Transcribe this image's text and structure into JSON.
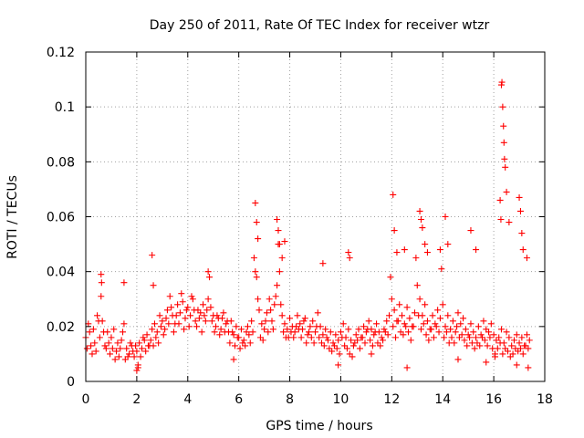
{
  "chart_data": {
    "type": "scatter",
    "title": "Day 250 of 2011, Rate Of TEC Index for receiver wtzr",
    "xlabel": "GPS time / hours",
    "ylabel": "ROTI / TECUs",
    "xlim": [
      0,
      18
    ],
    "ylim": [
      0,
      0.12
    ],
    "xticks": [
      0,
      2,
      4,
      6,
      8,
      10,
      12,
      14,
      16,
      18
    ],
    "xtick_labels": [
      "0",
      "2",
      "4",
      "6",
      "8",
      "10",
      "12",
      "14",
      "16",
      "18"
    ],
    "yticks": [
      0,
      0.02,
      0.04,
      0.06,
      0.08,
      0.1,
      0.12
    ],
    "ytick_labels": [
      "0",
      "0.02",
      "0.04",
      "0.06",
      "0.08",
      "0.1",
      "0.12"
    ],
    "grid": true,
    "marker": "+",
    "series_color": "#ff0000",
    "series": [
      {
        "name": "ROTI",
        "x": [
          0.0,
          0.1,
          0.2,
          0.3,
          0.4,
          0.5,
          0.6,
          0.7,
          0.8,
          0.9,
          1.0,
          1.1,
          1.2,
          1.3,
          1.4,
          1.5,
          1.6,
          1.7,
          1.8,
          1.9,
          2.0,
          2.1,
          2.2,
          2.3,
          2.4,
          2.5,
          2.6,
          2.7,
          2.8,
          2.9,
          3.0,
          3.1,
          3.2,
          3.3,
          3.4,
          3.5,
          3.6,
          3.7,
          3.8,
          3.9,
          4.0,
          4.1,
          4.2,
          4.3,
          4.4,
          4.5,
          4.6,
          4.7,
          4.8,
          4.9,
          5.0,
          5.1,
          5.2,
          5.3,
          5.4,
          5.5,
          5.6,
          5.7,
          5.8,
          5.9,
          6.0,
          6.1,
          6.2,
          6.3,
          6.4,
          6.5,
          6.6,
          6.7,
          6.8,
          6.9,
          7.0,
          7.1,
          7.2,
          7.3,
          7.4,
          7.5,
          7.6,
          7.7,
          7.8,
          7.9,
          8.0,
          8.1,
          8.2,
          8.3,
          8.4,
          8.5,
          8.6,
          8.7,
          8.8,
          8.9,
          9.0,
          9.1,
          9.2,
          9.3,
          9.4,
          9.5,
          9.6,
          9.7,
          9.8,
          9.9,
          10.0,
          10.1,
          10.2,
          10.3,
          10.4,
          10.5,
          10.6,
          10.7,
          10.8,
          10.9,
          11.0,
          11.1,
          11.2,
          11.3,
          11.4,
          11.5,
          11.6,
          11.7,
          11.8,
          11.9,
          12.0,
          12.1,
          12.2,
          12.3,
          12.4,
          12.5,
          12.6,
          12.7,
          12.8,
          12.9,
          13.0,
          13.1,
          13.2,
          13.3,
          13.4,
          13.5,
          13.6,
          13.7,
          13.8,
          13.9,
          14.0,
          14.1,
          14.2,
          14.3,
          14.4,
          14.5,
          14.6,
          14.7,
          14.8,
          14.9,
          15.0,
          15.1,
          15.2,
          15.3,
          15.4,
          15.5,
          15.6,
          15.7,
          15.8,
          15.9,
          16.0,
          16.1,
          16.2,
          16.3,
          16.4,
          16.5,
          16.6,
          16.7,
          16.8,
          16.9,
          17.0,
          17.1,
          17.2,
          17.3,
          17.4,
          0.05,
          0.15,
          0.25,
          0.35,
          0.45,
          0.55,
          0.65,
          0.75,
          0.85,
          0.95,
          1.05,
          1.15,
          1.25,
          1.35,
          1.45,
          1.55,
          1.65,
          1.75,
          1.85,
          1.95,
          2.05,
          2.15,
          2.25,
          2.35,
          2.45,
          2.55,
          2.65,
          2.75,
          2.85,
          2.95,
          3.05,
          3.15,
          3.25,
          3.35,
          3.45,
          3.55,
          3.65,
          3.75,
          3.85,
          3.95,
          4.05,
          4.15,
          4.25,
          4.35,
          4.45,
          4.55,
          4.65,
          4.75,
          4.85,
          4.95,
          5.05,
          5.15,
          5.25,
          5.35,
          5.45,
          5.55,
          5.65,
          5.75,
          5.85,
          5.95,
          6.05,
          6.15,
          6.25,
          6.35,
          6.45,
          6.55,
          6.65,
          6.75,
          6.85,
          6.95,
          7.05,
          7.15,
          7.25,
          7.35,
          7.45,
          7.55,
          7.65,
          7.75,
          7.85,
          7.95,
          8.05,
          8.15,
          8.25,
          8.35,
          8.45,
          8.55,
          8.65,
          8.75,
          8.85,
          8.95,
          9.05,
          9.15,
          9.25,
          9.35,
          9.45,
          9.55,
          9.65,
          9.75,
          9.85,
          9.95,
          10.05,
          10.15,
          10.25,
          10.35,
          10.45,
          10.55,
          10.65,
          10.75,
          10.85,
          10.95,
          11.05,
          11.15,
          11.25,
          11.35,
          11.45,
          11.55,
          11.65,
          11.75,
          11.85,
          11.95,
          12.05,
          12.15,
          12.25,
          12.35,
          12.45,
          12.55,
          12.65,
          12.75,
          12.85,
          12.95,
          13.05,
          13.15,
          13.25,
          13.35,
          13.45,
          13.55,
          13.65,
          13.75,
          13.85,
          13.95,
          14.05,
          14.15,
          14.25,
          14.35,
          14.45,
          14.55,
          14.65,
          14.75,
          14.85,
          14.95,
          15.05,
          15.15,
          15.25,
          15.35,
          15.45,
          15.55,
          15.65,
          15.75,
          15.85,
          15.95,
          16.05,
          16.15,
          16.25,
          16.35,
          16.45,
          16.55,
          16.65,
          16.75,
          16.85,
          16.95,
          17.05,
          17.15,
          17.25,
          17.35,
          0.6,
          0.62,
          1.5,
          2.6,
          2.65,
          4.8,
          6.65,
          6.7,
          6.75,
          7.5,
          7.55,
          7.6,
          7.7,
          7.8,
          9.3,
          10.3,
          10.35,
          12.05,
          12.1,
          12.2,
          12.5,
          13.1,
          13.15,
          13.2,
          13.3,
          13.4,
          13.9,
          14.1,
          14.2,
          15.1,
          15.3,
          16.3,
          16.32,
          16.35,
          16.38,
          16.4,
          16.42,
          16.45,
          16.5,
          16.6,
          16.25,
          16.28,
          17.0,
          17.05,
          17.1,
          17.15,
          17.3,
          2.0,
          2.05,
          5.8,
          9.9,
          11.2,
          12.6,
          14.6,
          15.7,
          16.05,
          16.9,
          17.35
        ],
        "y": [
          0.016,
          0.021,
          0.013,
          0.019,
          0.011,
          0.022,
          0.031,
          0.018,
          0.012,
          0.014,
          0.016,
          0.019,
          0.011,
          0.009,
          0.015,
          0.021,
          0.012,
          0.01,
          0.013,
          0.009,
          0.011,
          0.014,
          0.012,
          0.015,
          0.017,
          0.013,
          0.019,
          0.021,
          0.018,
          0.024,
          0.022,
          0.019,
          0.026,
          0.031,
          0.024,
          0.021,
          0.028,
          0.025,
          0.029,
          0.023,
          0.027,
          0.024,
          0.03,
          0.022,
          0.026,
          0.025,
          0.028,
          0.022,
          0.03,
          0.027,
          0.024,
          0.02,
          0.023,
          0.019,
          0.025,
          0.021,
          0.018,
          0.022,
          0.017,
          0.02,
          0.016,
          0.019,
          0.015,
          0.018,
          0.017,
          0.022,
          0.045,
          0.038,
          0.026,
          0.021,
          0.019,
          0.025,
          0.03,
          0.022,
          0.028,
          0.035,
          0.04,
          0.024,
          0.021,
          0.019,
          0.023,
          0.02,
          0.018,
          0.024,
          0.021,
          0.019,
          0.023,
          0.017,
          0.02,
          0.022,
          0.018,
          0.025,
          0.02,
          0.017,
          0.019,
          0.015,
          0.018,
          0.014,
          0.017,
          0.015,
          0.018,
          0.021,
          0.016,
          0.019,
          0.015,
          0.013,
          0.017,
          0.019,
          0.016,
          0.02,
          0.018,
          0.022,
          0.019,
          0.017,
          0.021,
          0.018,
          0.016,
          0.019,
          0.022,
          0.024,
          0.03,
          0.026,
          0.022,
          0.028,
          0.024,
          0.021,
          0.027,
          0.023,
          0.02,
          0.025,
          0.035,
          0.03,
          0.024,
          0.028,
          0.022,
          0.019,
          0.024,
          0.021,
          0.026,
          0.023,
          0.028,
          0.02,
          0.024,
          0.019,
          0.022,
          0.018,
          0.025,
          0.021,
          0.023,
          0.019,
          0.017,
          0.021,
          0.018,
          0.016,
          0.02,
          0.017,
          0.022,
          0.019,
          0.018,
          0.021,
          0.017,
          0.015,
          0.016,
          0.019,
          0.014,
          0.018,
          0.016,
          0.013,
          0.015,
          0.017,
          0.014,
          0.016,
          0.013,
          0.017,
          0.015,
          0.012,
          0.018,
          0.01,
          0.014,
          0.024,
          0.016,
          0.022,
          0.013,
          0.018,
          0.01,
          0.012,
          0.008,
          0.014,
          0.012,
          0.018,
          0.008,
          0.009,
          0.014,
          0.011,
          0.013,
          0.006,
          0.009,
          0.016,
          0.011,
          0.013,
          0.015,
          0.013,
          0.016,
          0.014,
          0.02,
          0.017,
          0.023,
          0.021,
          0.027,
          0.018,
          0.024,
          0.021,
          0.032,
          0.019,
          0.026,
          0.02,
          0.031,
          0.026,
          0.02,
          0.023,
          0.018,
          0.024,
          0.026,
          0.038,
          0.022,
          0.018,
          0.024,
          0.017,
          0.023,
          0.018,
          0.022,
          0.014,
          0.018,
          0.013,
          0.016,
          0.012,
          0.014,
          0.013,
          0.02,
          0.014,
          0.018,
          0.04,
          0.03,
          0.016,
          0.015,
          0.022,
          0.018,
          0.026,
          0.019,
          0.031,
          0.05,
          0.028,
          0.018,
          0.016,
          0.016,
          0.018,
          0.016,
          0.02,
          0.019,
          0.016,
          0.022,
          0.014,
          0.018,
          0.016,
          0.014,
          0.02,
          0.016,
          0.014,
          0.013,
          0.016,
          0.012,
          0.011,
          0.013,
          0.012,
          0.01,
          0.016,
          0.013,
          0.012,
          0.01,
          0.009,
          0.014,
          0.015,
          0.012,
          0.016,
          0.014,
          0.019,
          0.015,
          0.013,
          0.018,
          0.014,
          0.013,
          0.015,
          0.018,
          0.017,
          0.038,
          0.02,
          0.016,
          0.022,
          0.018,
          0.017,
          0.02,
          0.018,
          0.015,
          0.02,
          0.045,
          0.024,
          0.019,
          0.021,
          0.017,
          0.015,
          0.019,
          0.016,
          0.02,
          0.018,
          0.041,
          0.016,
          0.018,
          0.014,
          0.016,
          0.014,
          0.02,
          0.016,
          0.017,
          0.015,
          0.013,
          0.016,
          0.014,
          0.012,
          0.014,
          0.013,
          0.016,
          0.015,
          0.013,
          0.016,
          0.012,
          0.01,
          0.012,
          0.014,
          0.01,
          0.012,
          0.011,
          0.009,
          0.01,
          0.012,
          0.011,
          0.012,
          0.01,
          0.013,
          0.012,
          0.039,
          0.036,
          0.036,
          0.046,
          0.035,
          0.04,
          0.065,
          0.058,
          0.052,
          0.059,
          0.055,
          0.05,
          0.045,
          0.051,
          0.043,
          0.047,
          0.045,
          0.068,
          0.055,
          0.047,
          0.048,
          0.062,
          0.059,
          0.056,
          0.05,
          0.047,
          0.048,
          0.06,
          0.05,
          0.055,
          0.048,
          0.108,
          0.109,
          0.1,
          0.093,
          0.087,
          0.081,
          0.078,
          0.069,
          0.058,
          0.066,
          0.059,
          0.067,
          0.062,
          0.054,
          0.048,
          0.045,
          0.004,
          0.005,
          0.008,
          0.006,
          0.01,
          0.005,
          0.008,
          0.007,
          0.009,
          0.006,
          0.005
        ]
      }
    ]
  }
}
